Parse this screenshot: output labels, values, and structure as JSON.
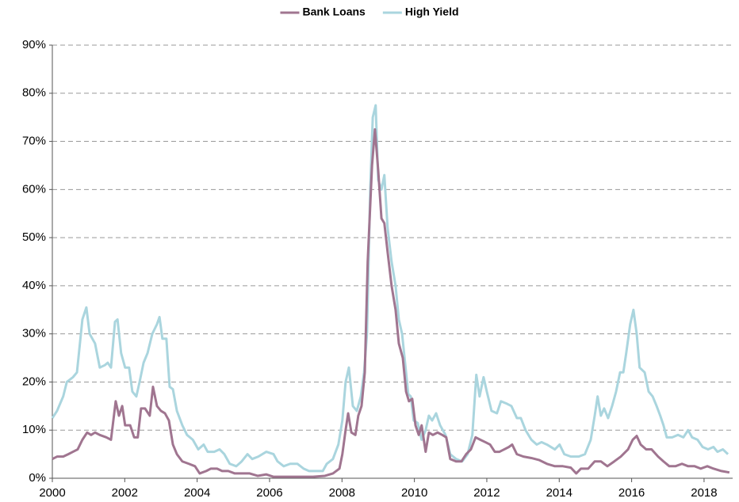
{
  "chart_data": {
    "type": "line",
    "series": [
      {
        "name": "Bank Loans",
        "color": "#a07590",
        "x": [
          2000.0,
          2000.13,
          2000.3,
          2000.44,
          2000.57,
          2000.7,
          2000.83,
          2000.96,
          2001.07,
          2001.18,
          2001.31,
          2001.49,
          2001.62,
          2001.75,
          2001.84,
          2001.93,
          2002.01,
          2002.15,
          2002.26,
          2002.36,
          2002.45,
          2002.56,
          2002.69,
          2002.78,
          2002.89,
          2003.0,
          2003.11,
          2003.22,
          2003.33,
          2003.44,
          2003.59,
          2003.77,
          2003.94,
          2004.07,
          2004.25,
          2004.38,
          2004.55,
          2004.69,
          2004.86,
          2005.04,
          2005.23,
          2005.45,
          2005.67,
          2005.91,
          2006.11,
          2006.44,
          2006.88,
          2007.2,
          2007.53,
          2007.75,
          2007.93,
          2008.01,
          2008.1,
          2008.17,
          2008.26,
          2008.37,
          2008.45,
          2008.54,
          2008.63,
          2008.71,
          2008.83,
          2008.91,
          2009.0,
          2009.09,
          2009.17,
          2009.26,
          2009.37,
          2009.48,
          2009.57,
          2009.68,
          2009.77,
          2009.85,
          2009.94,
          2010.03,
          2010.12,
          2010.2,
          2010.31,
          2010.4,
          2010.51,
          2010.64,
          2010.77,
          2010.88,
          2010.99,
          2011.15,
          2011.3,
          2011.43,
          2011.56,
          2011.69,
          2011.82,
          2011.96,
          2012.09,
          2012.22,
          2012.35,
          2012.48,
          2012.61,
          2012.7,
          2012.83,
          2013.01,
          2013.23,
          2013.44,
          2013.66,
          2013.88,
          2014.1,
          2014.32,
          2014.47,
          2014.6,
          2014.8,
          2014.98,
          2015.15,
          2015.33,
          2015.52,
          2015.7,
          2015.9,
          2016.03,
          2016.14,
          2016.25,
          2016.4,
          2016.55,
          2016.73,
          2016.88,
          2017.04,
          2017.21,
          2017.39,
          2017.56,
          2017.74,
          2017.91,
          2018.09,
          2018.26,
          2018.48,
          2018.7
        ],
        "values": [
          4,
          4.5,
          4.5,
          5,
          5.5,
          6,
          8,
          9.5,
          9,
          9.5,
          9,
          8.5,
          8,
          16,
          13,
          15,
          11,
          11,
          8.5,
          8.5,
          14.5,
          14.5,
          13,
          19,
          15,
          14,
          13.5,
          12,
          7,
          5,
          3.5,
          3,
          2.5,
          1,
          1.5,
          2,
          2,
          1.5,
          1.5,
          1,
          1,
          1,
          0.5,
          0.8,
          0.3,
          0.3,
          0.3,
          0.3,
          0.5,
          1,
          2,
          5,
          10,
          13.5,
          9.5,
          9,
          13,
          15,
          22,
          45,
          65,
          72.5,
          64,
          54,
          53,
          47,
          40,
          35,
          28,
          25,
          18,
          16,
          16.5,
          11,
          9,
          11,
          5.5,
          9.5,
          9,
          9.5,
          9,
          8.5,
          4,
          3.5,
          3.5,
          5,
          6,
          8.5,
          8,
          7.5,
          7,
          5.5,
          5.5,
          6,
          6.5,
          7,
          5,
          4.5,
          4.2,
          3.8,
          3,
          2.5,
          2.5,
          2.2,
          1,
          2,
          2,
          3.5,
          3.5,
          2.5,
          3.5,
          4.5,
          6,
          8,
          8.8,
          7,
          6,
          6,
          4.5,
          3.5,
          2.5,
          2.5,
          3,
          2.5,
          2.5,
          2,
          2.5,
          2,
          1.5,
          1.2
        ]
      },
      {
        "name": "High Yield",
        "color": "#aad5de",
        "x": [
          2000.0,
          2000.13,
          2000.3,
          2000.4,
          2000.57,
          2000.68,
          2000.83,
          2000.94,
          2001.03,
          2001.18,
          2001.31,
          2001.45,
          2001.53,
          2001.62,
          2001.73,
          2001.8,
          2001.9,
          2002.01,
          2002.12,
          2002.21,
          2002.32,
          2002.41,
          2002.52,
          2002.63,
          2002.76,
          2002.89,
          2002.96,
          2003.04,
          2003.15,
          2003.24,
          2003.33,
          2003.44,
          2003.59,
          2003.72,
          2003.88,
          2004.03,
          2004.18,
          2004.29,
          2004.47,
          2004.62,
          2004.75,
          2004.9,
          2005.08,
          2005.23,
          2005.39,
          2005.52,
          2005.69,
          2005.91,
          2006.11,
          2006.22,
          2006.39,
          2006.57,
          2006.77,
          2006.94,
          2007.09,
          2007.31,
          2007.47,
          2007.58,
          2007.75,
          2007.9,
          2008.01,
          2008.1,
          2008.19,
          2008.3,
          2008.41,
          2008.52,
          2008.61,
          2008.69,
          2008.78,
          2008.85,
          2008.93,
          2009.0,
          2009.09,
          2009.17,
          2009.26,
          2009.37,
          2009.48,
          2009.57,
          2009.66,
          2009.77,
          2009.83,
          2009.9,
          2009.98,
          2010.09,
          2010.2,
          2010.31,
          2010.4,
          2010.49,
          2010.6,
          2010.71,
          2010.86,
          2010.99,
          2011.15,
          2011.32,
          2011.47,
          2011.6,
          2011.71,
          2011.8,
          2011.91,
          2012.0,
          2012.13,
          2012.28,
          2012.39,
          2012.55,
          2012.68,
          2012.83,
          2012.94,
          2013.07,
          2013.23,
          2013.38,
          2013.51,
          2013.66,
          2013.88,
          2014.01,
          2014.14,
          2014.32,
          2014.54,
          2014.71,
          2014.87,
          2014.98,
          2015.06,
          2015.15,
          2015.24,
          2015.35,
          2015.46,
          2015.57,
          2015.68,
          2015.77,
          2015.85,
          2015.96,
          2016.05,
          2016.14,
          2016.22,
          2016.36,
          2016.47,
          2016.58,
          2016.69,
          2016.79,
          2016.88,
          2016.97,
          2017.12,
          2017.28,
          2017.43,
          2017.56,
          2017.67,
          2017.82,
          2017.96,
          2018.11,
          2018.26,
          2018.37,
          2018.52,
          2018.66
        ],
        "values": [
          12.5,
          14,
          17,
          20,
          21,
          22,
          33,
          35.5,
          30,
          28,
          23,
          23.5,
          24,
          23,
          32.5,
          33,
          26,
          23,
          23,
          18,
          17,
          20,
          24,
          26,
          30,
          32,
          33.5,
          29,
          29,
          19,
          18.5,
          14,
          11,
          9,
          8,
          6,
          7,
          5.5,
          5.5,
          6,
          5,
          3,
          2.5,
          3.5,
          5,
          4,
          4.5,
          5.5,
          5,
          3.5,
          2.5,
          3,
          3,
          2,
          1.5,
          1.5,
          1.5,
          3,
          4,
          7,
          12,
          20,
          23,
          15,
          14,
          17,
          22,
          30,
          60,
          75,
          77.5,
          62,
          60,
          63,
          52,
          45,
          40,
          33,
          30,
          22,
          17.5,
          17,
          12,
          11.5,
          8,
          10,
          13,
          12,
          13.5,
          11,
          9,
          5,
          4,
          3.5,
          5,
          9,
          21.5,
          17,
          21,
          18,
          14,
          13.5,
          16,
          15.5,
          15,
          12.5,
          12.5,
          10,
          8,
          7,
          7.5,
          7,
          6,
          7,
          5,
          4.5,
          4.5,
          5,
          8,
          13,
          17,
          13,
          14.5,
          12.5,
          15,
          18,
          22,
          22,
          26,
          32,
          35,
          30,
          23,
          22,
          18,
          17,
          15,
          13,
          11,
          8.5,
          8.5,
          9,
          8.5,
          10,
          8.5,
          8,
          6.5,
          6,
          6.5,
          5.5,
          6,
          5
        ]
      }
    ],
    "xlim": [
      2000,
      2018.79
    ],
    "xticks": [
      2000,
      2002,
      2004,
      2006,
      2008,
      2010,
      2012,
      2014,
      2016,
      2018
    ],
    "ylim": [
      0,
      90
    ],
    "yticks": [
      {
        "value": 0,
        "label": "0%"
      },
      {
        "value": 10,
        "label": "10%"
      },
      {
        "value": 20,
        "label": "20%"
      },
      {
        "value": 30,
        "label": "30%"
      },
      {
        "value": 40,
        "label": "40%"
      },
      {
        "value": 50,
        "label": "50%"
      },
      {
        "value": 60,
        "label": "60%"
      },
      {
        "value": 70,
        "label": "70%"
      },
      {
        "value": 80,
        "label": "80%"
      },
      {
        "value": 90,
        "label": "90%"
      }
    ],
    "grid": true,
    "legend": "top"
  }
}
